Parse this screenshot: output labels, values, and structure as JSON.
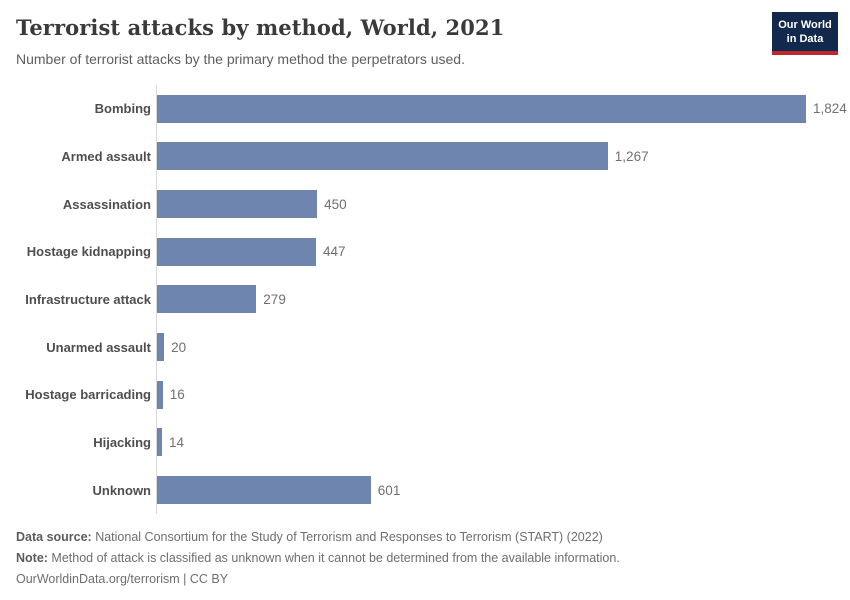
{
  "header": {
    "title": "Terrorist attacks by method, World, 2021",
    "subtitle": "Number of terrorist attacks by the primary method the perpetrators used.",
    "logo": {
      "line1": "Our World",
      "line2": "in Data"
    }
  },
  "chart_data": {
    "type": "bar",
    "orientation": "horizontal",
    "title": "Terrorist attacks by method, World, 2021",
    "xlabel": "",
    "ylabel": "",
    "categories": [
      "Bombing",
      "Armed assault",
      "Assassination",
      "Hostage kidnapping",
      "Infrastructure attack",
      "Unarmed assault",
      "Hostage barricading",
      "Hijacking",
      "Unknown"
    ],
    "values": [
      1824,
      1267,
      450,
      447,
      279,
      20,
      16,
      14,
      601
    ],
    "value_labels": [
      "1,824",
      "1,267",
      "450",
      "447",
      "279",
      "20",
      "16",
      "14",
      "601"
    ],
    "xlim": [
      0,
      1824
    ],
    "grid": false,
    "legend": false,
    "bar_color": "#6d85af"
  },
  "colors": {
    "bar": "#6d85af",
    "axis_line": "#dadada",
    "logo_background": "#12294d",
    "logo_underline": "#c0272d"
  },
  "footer": {
    "data_source_label": "Data source:",
    "data_source_text": " National Consortium for the Study of Terrorism and Responses to Terrorism (START) (2022)",
    "note_label": "Note:",
    "note_text": " Method of attack is classified as unknown when it cannot be determined from the available information.",
    "citation": "OurWorldinData.org/terrorism | CC BY"
  }
}
